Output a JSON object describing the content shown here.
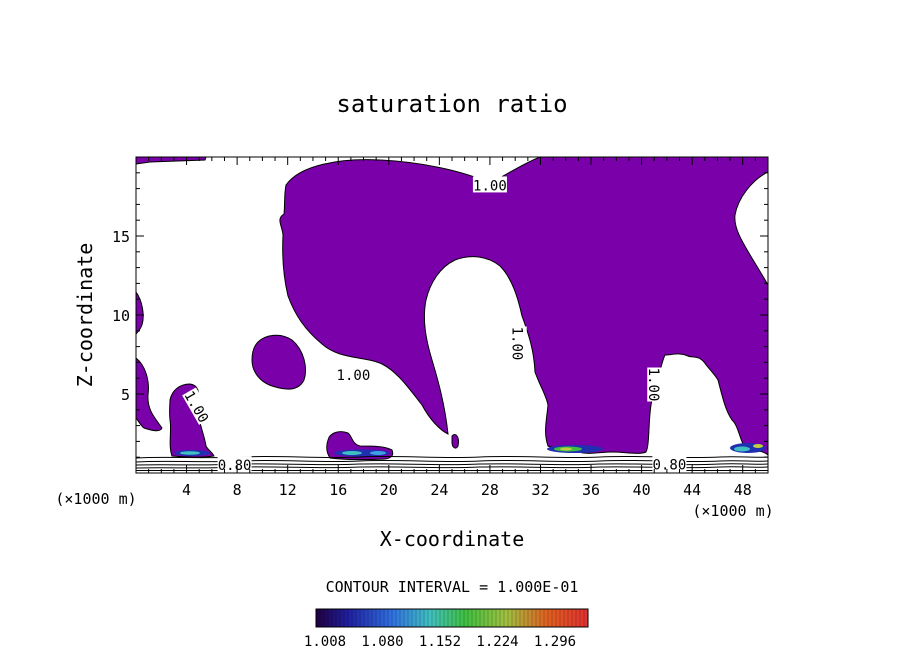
{
  "chart_data": {
    "type": "contour",
    "title": "saturation ratio",
    "xlabel": "X-coordinate",
    "ylabel": "Z-coordinate",
    "x_unit_left": "(×1000 m)",
    "x_unit_right": "(×1000 m)",
    "xlim": [
      0,
      50
    ],
    "ylim": [
      0,
      20
    ],
    "x_ticks": [
      4,
      8,
      12,
      16,
      20,
      24,
      28,
      32,
      36,
      40,
      44,
      48
    ],
    "y_ticks": [
      5,
      10,
      15
    ],
    "contour_interval_text": "CONTOUR INTERVAL = 1.000E-01",
    "contour_labels": [
      {
        "text": "1.00",
        "x": 28.0,
        "y": 18.2,
        "rotate": 0
      },
      {
        "text": "1.00",
        "x": 17.2,
        "y": 6.2,
        "rotate": 0
      },
      {
        "text": "1.00",
        "x": 30.2,
        "y": 8.2,
        "rotate": 90
      },
      {
        "text": "1.00",
        "x": 41.0,
        "y": 5.6,
        "rotate": 90
      },
      {
        "text": "1.00",
        "x": 4.8,
        "y": 4.2,
        "rotate": 60
      },
      {
        "text": "0.80",
        "x": 7.8,
        "y": 0.5,
        "rotate": 0
      },
      {
        "text": "0.80",
        "x": 42.2,
        "y": 0.55,
        "rotate": 0
      }
    ],
    "colorbar": {
      "tick_labels": [
        "1.008",
        "1.080",
        "1.152",
        "1.224",
        "1.296"
      ],
      "range": [
        1.008,
        1.296
      ]
    },
    "colors": {
      "fill": "#7a00aa",
      "contour_line": "#000000"
    }
  }
}
